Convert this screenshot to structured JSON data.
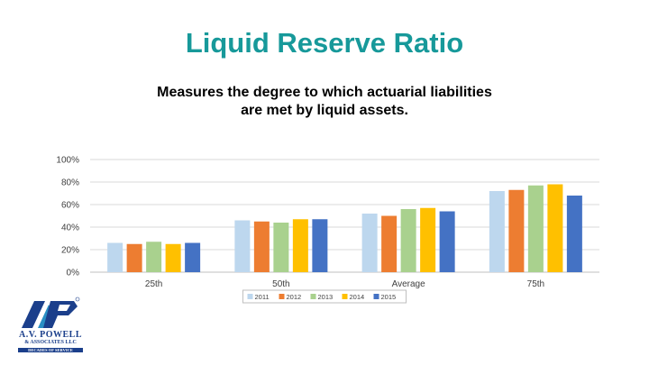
{
  "slide": {
    "title": "Liquid Reserve Ratio",
    "subtitle_line1": "Measures the degree to which actuarial liabilities",
    "subtitle_line2": "are met by liquid assets."
  },
  "chart_data": {
    "type": "bar",
    "categories": [
      "25th",
      "50th",
      "Average",
      "75th"
    ],
    "series": [
      {
        "name": "2011",
        "color": "#bdd7ee",
        "values": [
          0.26,
          0.46,
          0.52,
          0.72
        ]
      },
      {
        "name": "2012",
        "color": "#ed7d31",
        "values": [
          0.25,
          0.45,
          0.5,
          0.73
        ]
      },
      {
        "name": "2013",
        "color": "#a9d18e",
        "values": [
          0.27,
          0.44,
          0.56,
          0.77
        ]
      },
      {
        "name": "2014",
        "color": "#ffc000",
        "values": [
          0.25,
          0.47,
          0.57,
          0.78
        ]
      },
      {
        "name": "2015",
        "color": "#4472c4",
        "values": [
          0.26,
          0.47,
          0.54,
          0.68
        ]
      }
    ],
    "yticks": [
      "0%",
      "20%",
      "40%",
      "60%",
      "80%",
      "100%"
    ],
    "ylim": [
      0,
      1
    ],
    "grid": true,
    "legend_position": "bottom"
  },
  "logo": {
    "monogram": "AVP",
    "name": "A.V. POWELL",
    "sub": "& ASSOCIATES LLC",
    "tagline": "DECADES OF SERVICE",
    "colors": {
      "primary": "#1b3f8b",
      "accent": "#2a8fc4"
    }
  }
}
